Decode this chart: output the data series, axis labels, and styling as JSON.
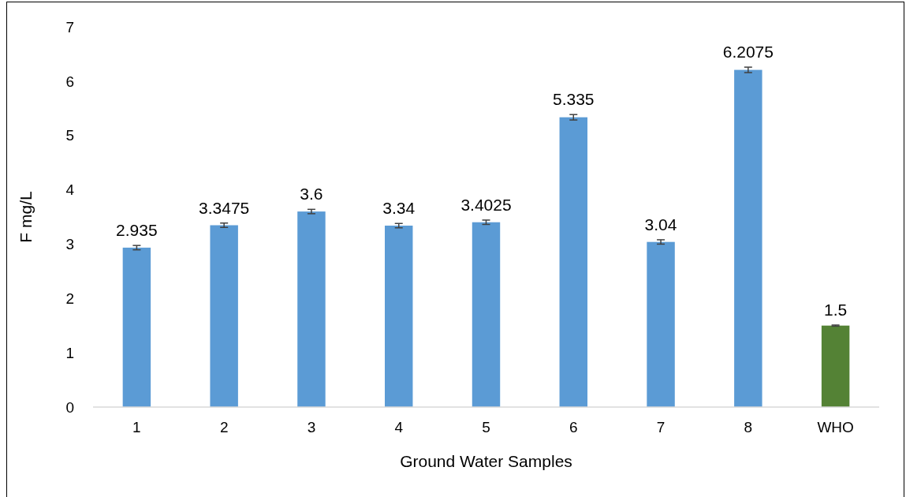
{
  "chart_data": {
    "type": "bar",
    "xlabel": "Ground Water Samples",
    "ylabel": "F mg/L",
    "categories": [
      "1",
      "2",
      "3",
      "4",
      "5",
      "6",
      "7",
      "8",
      "WHO"
    ],
    "values": [
      2.935,
      3.3475,
      3.6,
      3.34,
      3.4025,
      5.335,
      3.04,
      6.2075,
      1.5
    ],
    "colors": [
      "#5b9bd5",
      "#5b9bd5",
      "#5b9bd5",
      "#5b9bd5",
      "#5b9bd5",
      "#5b9bd5",
      "#5b9bd5",
      "#5b9bd5",
      "#548235"
    ],
    "errors": [
      0.04,
      0.04,
      0.04,
      0.04,
      0.04,
      0.05,
      0.04,
      0.05,
      0.01
    ],
    "ylim": [
      0,
      7
    ],
    "yticks": [
      0,
      1,
      2,
      3,
      4,
      5,
      6,
      7
    ],
    "data_labels": true
  }
}
